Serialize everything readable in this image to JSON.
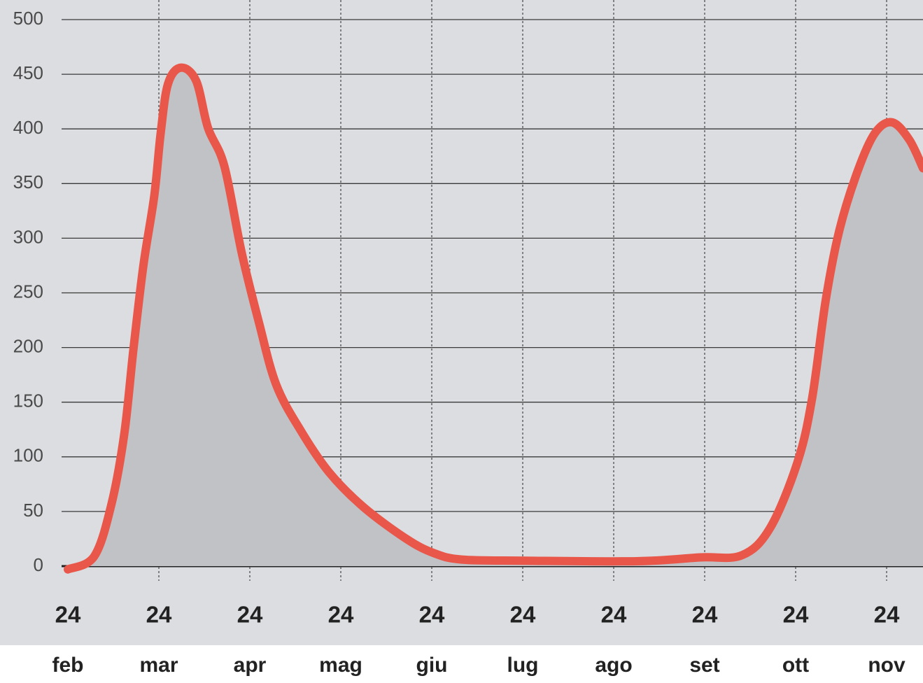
{
  "chart_data": {
    "type": "area-line",
    "x": [
      0,
      0.29,
      0.48,
      0.62,
      0.72,
      0.83,
      0.95,
      1.02,
      1.1,
      1.24,
      1.41,
      1.54,
      1.72,
      1.91,
      2.1,
      2.29,
      2.56,
      2.87,
      3.25,
      3.72,
      4.02,
      4.33,
      5.02,
      6.25,
      6.95,
      7.41,
      7.72,
      8.02,
      8.18,
      8.33,
      8.48,
      8.68,
      8.87,
      9.06,
      9.25,
      9.4
    ],
    "series": [
      {
        "color": "#e8574a",
        "fill": "#c1c2c6",
        "values": [
          -3,
          9,
          57,
          121,
          198,
          275,
          339,
          396,
          441,
          456,
          444,
          401,
          366,
          287,
          223,
          166,
          124,
          86,
          54,
          25,
          12,
          6,
          5,
          4.5,
          8,
          10,
          35,
          95,
          153,
          243,
          307,
          361,
          396,
          406,
          390,
          364
        ]
      }
    ],
    "xlim": [
      0,
      9.4
    ],
    "xticks": [
      {
        "value": 0,
        "label": "24",
        "month": "feb"
      },
      {
        "value": 1,
        "label": "24",
        "month": "mar"
      },
      {
        "value": 2,
        "label": "24",
        "month": "apr"
      },
      {
        "value": 3,
        "label": "24",
        "month": "mag"
      },
      {
        "value": 4,
        "label": "24",
        "month": "giu"
      },
      {
        "value": 5,
        "label": "24",
        "month": "lug"
      },
      {
        "value": 6,
        "label": "24",
        "month": "ago"
      },
      {
        "value": 7,
        "label": "24",
        "month": "set"
      },
      {
        "value": 8,
        "label": "24",
        "month": "ott"
      },
      {
        "value": 9,
        "label": "24",
        "month": "nov"
      }
    ],
    "ylim": [
      0,
      500
    ],
    "yticks": [
      0,
      50,
      100,
      150,
      200,
      250,
      300,
      350,
      400,
      450,
      500
    ],
    "grid": true
  }
}
